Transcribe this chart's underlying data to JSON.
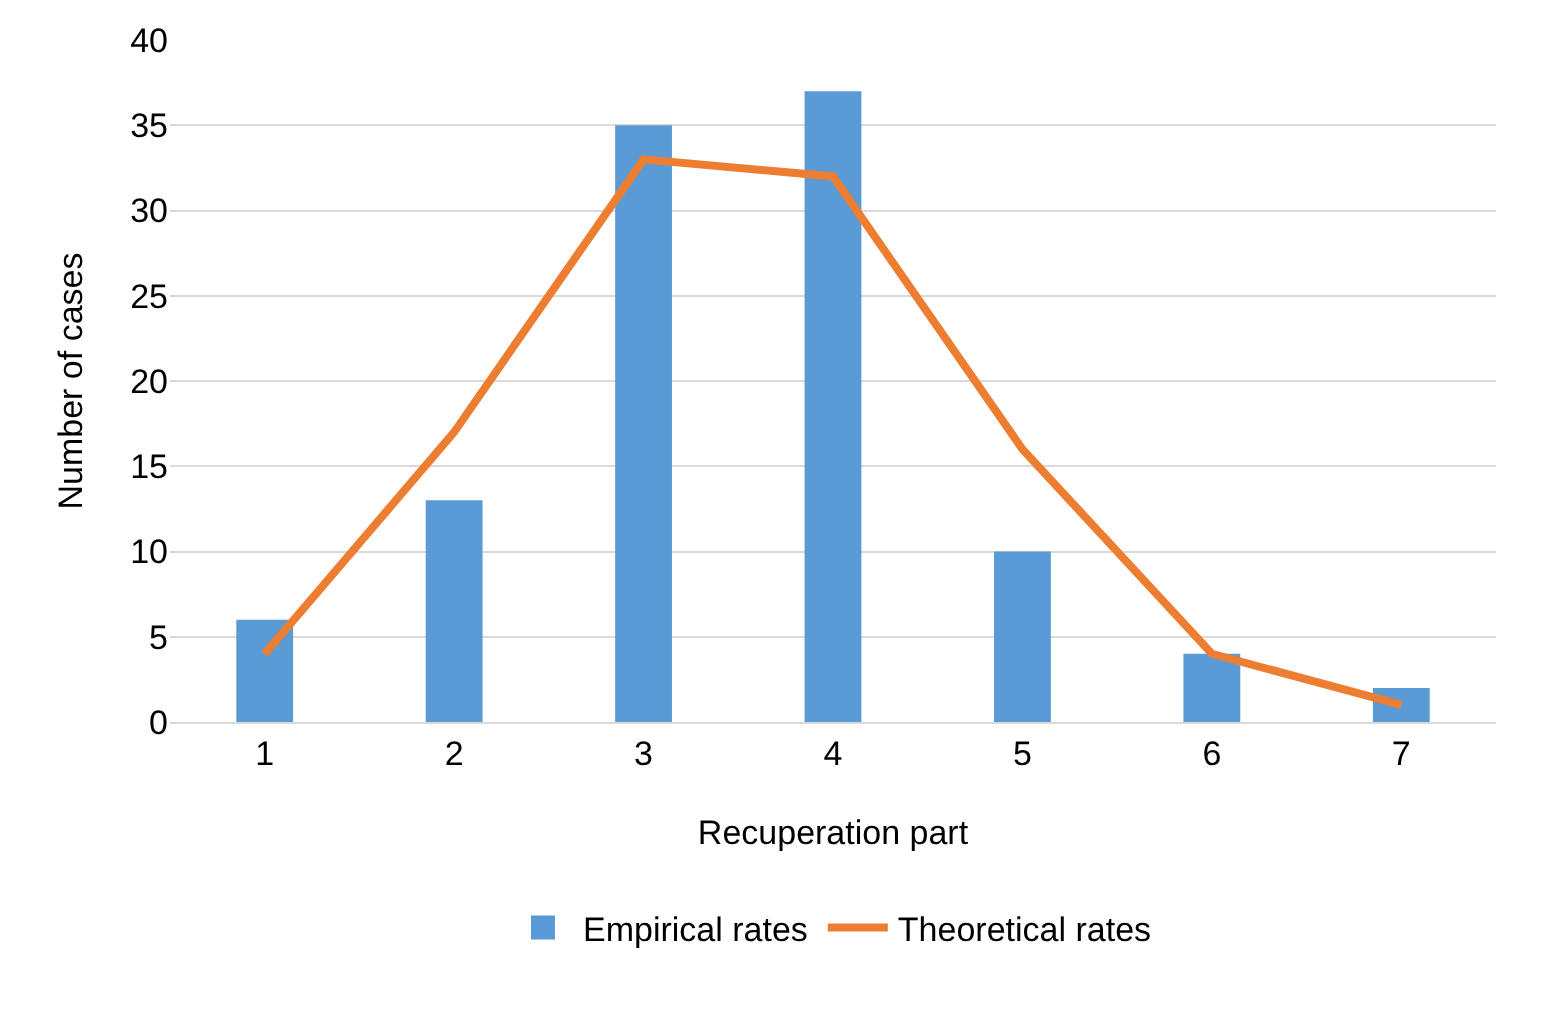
{
  "chart_data": {
    "type": "bar",
    "xlabel": "Recuperation part",
    "ylabel": "Number of cases",
    "categories": [
      "1",
      "2",
      "3",
      "4",
      "5",
      "6",
      "7"
    ],
    "series": [
      {
        "name": "Empirical rates",
        "color": "#5b9bd5",
        "values": [
          6,
          13,
          35,
          37,
          10,
          4,
          2
        ]
      },
      {
        "name": "Theoretical rates",
        "type": "line",
        "color": "#ed7d31",
        "values": [
          4,
          17,
          33,
          32,
          16,
          4,
          1
        ]
      }
    ],
    "ylim": [
      0,
      40
    ],
    "yticks": [
      0,
      5,
      10,
      15,
      20,
      25,
      30,
      35,
      40
    ],
    "grid": "y",
    "legend": "bottom",
    "marker": "none",
    "line_style": "solid"
  }
}
